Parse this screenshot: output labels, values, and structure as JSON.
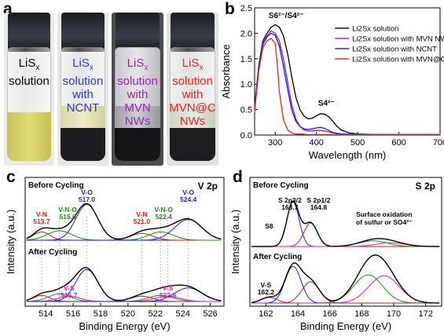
{
  "panels": {
    "a": {
      "letter": "a",
      "vials": [
        {
          "lines": [
            "Li",
            "solution"
          ],
          "color": "#000000",
          "name": "Li2Sx solution"
        },
        {
          "lines": [
            "Li",
            "solution",
            "with",
            "NCNT"
          ],
          "color": "#2a39c9"
        },
        {
          "lines": [
            "Li",
            "solution",
            "with",
            "MVN",
            "NWs"
          ],
          "color": "#8a2aa8"
        },
        {
          "lines": [
            "Li",
            "solution",
            "with",
            "MVN@C",
            "NWs"
          ],
          "color": "#e0281e"
        }
      ]
    },
    "b": {
      "letter": "b",
      "ylabel": "Absorbance",
      "xlabel": "Wavelength (nm)",
      "annotations": {
        "peak1": "S6 2-/S4 2-",
        "peak2": "S4 2-"
      },
      "legend": [
        "Li2Sx solution",
        "Li2Sx solution with MVN NWs",
        "Li2Sx solution with NCNT",
        "Li2Sx solution with MVN@C NWs"
      ]
    },
    "c": {
      "letter": "c",
      "title": "V 2p",
      "before": "Before Cycling",
      "after": "After Cycling",
      "ylabel": "Intensity (a.u.)",
      "xlabel": "Binding Energy (eV)",
      "peaks_before": [
        {
          "label": "V-N",
          "value": "513.7",
          "color": "#d91a1a"
        },
        {
          "label": "V-N-O",
          "value": "515.0",
          "color": "#1a8c1a"
        },
        {
          "label": "V-O",
          "value": "517.0",
          "color": "#1a1ad9"
        },
        {
          "label": "V-N",
          "value": "521.0",
          "color": "#d91a1a"
        },
        {
          "label": "V-N-O",
          "value": "522.4",
          "color": "#1a8c1a"
        },
        {
          "label": "V-O",
          "value": "524.4",
          "color": "#1a1ad9"
        }
      ],
      "peaks_after": [
        {
          "label": "V-S",
          "value": "515.7",
          "color": "#d11ad1"
        },
        {
          "label": "V-S",
          "value": "522.9",
          "color": "#d11ad1"
        }
      ]
    },
    "d": {
      "letter": "d",
      "title": "S 2p",
      "before": "Before Cycling",
      "after": "After Cycling",
      "ylabel": "Intensity (a.u.)",
      "xlabel": "Binding Energy (eV)",
      "labels": {
        "s2p32": "S 2p",
        "s2p32_value": "163.7",
        "s2p12": "S 2p",
        "s2p12_value": "164.8",
        "s8": "S",
        "oxidation1": "Surface oxidation",
        "oxidation2": "of sulfur or SO",
        "vs": "V-S",
        "vs_value": "162.2"
      }
    }
  },
  "chart_data": [
    {
      "type": "line",
      "xlabel": "Wavelength (nm)",
      "ylabel": "Absorbance",
      "xlim": [
        250,
        700
      ],
      "ylim": [
        0.0,
        2.5
      ],
      "xticks": [
        300,
        400,
        500,
        600,
        700
      ],
      "yticks": [
        0.0,
        0.5,
        1.0,
        1.5,
        2.0,
        2.5
      ],
      "legend_position": "top-right",
      "series": [
        {
          "name": "Li2Sx solution",
          "color": "#000000",
          "x": [
            250,
            260,
            270,
            280,
            290,
            300,
            310,
            320,
            330,
            340,
            350,
            360,
            370,
            380,
            390,
            400,
            410,
            420,
            430,
            440,
            450,
            460,
            480,
            500,
            550,
            600,
            650,
            700
          ],
          "y": [
            0.55,
            1.35,
            1.85,
            2.0,
            2.12,
            2.17,
            2.12,
            1.95,
            1.6,
            1.15,
            0.75,
            0.5,
            0.37,
            0.32,
            0.33,
            0.38,
            0.42,
            0.41,
            0.36,
            0.27,
            0.17,
            0.1,
            0.04,
            0.02,
            0.01,
            0.01,
            0.01,
            0.01
          ]
        },
        {
          "name": "Li2Sx solution with MVN NWs",
          "color": "#8a2aa8",
          "x": [
            250,
            260,
            270,
            280,
            290,
            300,
            310,
            320,
            330,
            340,
            350,
            360,
            370,
            380,
            390,
            400,
            410,
            420,
            430,
            440,
            460,
            500,
            600,
            700
          ],
          "y": [
            0.5,
            1.3,
            1.8,
            1.95,
            2.05,
            2.0,
            1.85,
            1.5,
            1.05,
            0.6,
            0.32,
            0.17,
            0.1,
            0.08,
            0.08,
            0.09,
            0.09,
            0.08,
            0.06,
            0.04,
            0.02,
            0.01,
            0.01,
            0.01
          ]
        },
        {
          "name": "Li2Sx solution with NCNT",
          "color": "#1a1ad9",
          "x": [
            250,
            260,
            270,
            280,
            290,
            300,
            310,
            320,
            330,
            340,
            350,
            360,
            370,
            380,
            390,
            400,
            410,
            420,
            430,
            440,
            460,
            500,
            600,
            700
          ],
          "y": [
            0.5,
            1.3,
            1.78,
            1.93,
            2.0,
            1.96,
            1.75,
            1.35,
            0.9,
            0.5,
            0.27,
            0.17,
            0.12,
            0.11,
            0.12,
            0.14,
            0.15,
            0.13,
            0.09,
            0.05,
            0.02,
            0.01,
            0.01,
            0.01
          ]
        },
        {
          "name": "Li2Sx solution with MVN@C NWs",
          "color": "#e0281e",
          "x": [
            250,
            260,
            270,
            280,
            290,
            300,
            305,
            310,
            320,
            330,
            340,
            350,
            360,
            380,
            400,
            450,
            500,
            600,
            700
          ],
          "y": [
            0.45,
            1.25,
            1.72,
            1.85,
            1.9,
            1.8,
            1.4,
            0.85,
            0.3,
            0.1,
            0.04,
            0.02,
            0.02,
            0.01,
            0.01,
            0.01,
            0.01,
            0.01,
            0.01
          ]
        }
      ]
    },
    {
      "type": "line",
      "title": "V 2p",
      "xlabel": "Binding Energy (eV)",
      "ylabel": "Intensity (a.u.)",
      "xlim": [
        512.5,
        527
      ],
      "xticks": [
        514,
        516,
        518,
        520,
        522,
        524,
        526
      ],
      "series": [
        {
          "name": "",
          "color": "#000000",
          "x": [
            513,
            514,
            515,
            516,
            516.5,
            517,
            517.5,
            518,
            519,
            520,
            521,
            522,
            523,
            524,
            524.4,
            525,
            526
          ],
          "y": [
            0.18,
            0.3,
            0.42,
            0.7,
            0.92,
            1.0,
            0.88,
            0.6,
            0.3,
            0.28,
            0.34,
            0.42,
            0.5,
            0.6,
            0.62,
            0.52,
            0.28
          ]
        },
        {
          "name": "",
          "color": "#000000",
          "x": [
            513,
            514,
            515,
            516,
            516.5,
            517,
            517.5,
            518,
            519,
            520,
            521,
            522,
            523,
            524,
            525,
            526
          ],
          "y": [
            0.12,
            0.24,
            0.36,
            0.62,
            0.82,
            0.9,
            0.8,
            0.55,
            0.22,
            0.2,
            0.26,
            0.32,
            0.4,
            0.44,
            0.38,
            0.22
          ]
        }
      ]
    },
    {
      "type": "line",
      "title": "S 2p",
      "xlabel": "Binding Energy (eV)",
      "ylabel": "Intensity (a.u.)",
      "xlim": [
        161,
        173
      ],
      "xticks": [
        162,
        164,
        166,
        168,
        170,
        172
      ],
      "series": [
        {
          "name": "",
          "color": "#000000",
          "x": [
            161,
            162,
            163,
            163.7,
            164.2,
            164.8,
            165.5,
            166,
            167,
            168,
            168.7,
            169.5,
            170,
            171,
            172
          ],
          "y": [
            0.02,
            0.05,
            0.5,
            0.95,
            0.55,
            0.6,
            0.25,
            0.08,
            0.06,
            0.12,
            0.14,
            0.12,
            0.1,
            0.05,
            0.03
          ]
        },
        {
          "name": "",
          "color": "#000000",
          "x": [
            161,
            162,
            162.6,
            163,
            163.7,
            164.2,
            164.8,
            165.5,
            166,
            167,
            168,
            168.7,
            169,
            169.5,
            170,
            171,
            172
          ],
          "y": [
            0.05,
            0.12,
            0.28,
            0.55,
            0.8,
            0.72,
            0.55,
            0.35,
            0.28,
            0.5,
            0.85,
            0.95,
            0.96,
            0.88,
            0.7,
            0.35,
            0.15
          ]
        }
      ]
    }
  ]
}
